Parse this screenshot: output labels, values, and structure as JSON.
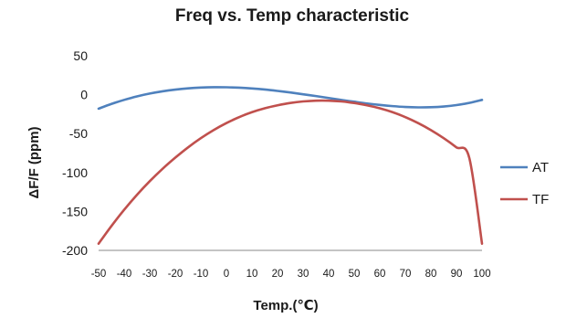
{
  "chart_data": {
    "type": "line",
    "title": "Freq vs. Temp characteristic",
    "xlabel": "Temp.(℃)",
    "ylabel": "ΔF/F (ppm)",
    "x": [
      -50,
      -45,
      -40,
      -35,
      -30,
      -25,
      -20,
      -15,
      -10,
      -5,
      0,
      5,
      10,
      15,
      20,
      25,
      30,
      35,
      40,
      45,
      50,
      55,
      60,
      65,
      70,
      75,
      80,
      85,
      90,
      95,
      100
    ],
    "series": [
      {
        "name": "AT",
        "color": "#4f81bd",
        "values": [
          -18,
          -11.9,
          -6.7,
          -2.2,
          1.4,
          4.3,
          6.5,
          8.1,
          9.1,
          9.6,
          9.5,
          9,
          8,
          6.6,
          4.8,
          2.8,
          0.5,
          -1.8,
          -4.3,
          -6.8,
          -9.1,
          -11.3,
          -13.2,
          -14.7,
          -15.8,
          -16.3,
          -16.1,
          -15.2,
          -13.4,
          -10.6,
          -6.7
        ]
      },
      {
        "name": "TF",
        "color": "#c0504d",
        "values": [
          -191.4,
          -168.8,
          -147.9,
          -128.7,
          -111.2,
          -95.3,
          -80.9,
          -67.7,
          -55.9,
          -45.5,
          -36.5,
          -28.8,
          -22.5,
          -17.5,
          -13.7,
          -10.7,
          -8.7,
          -7.7,
          -7.7,
          -8.7,
          -10.7,
          -13.7,
          -17.5,
          -22.5,
          -28.8,
          -36.5,
          -45.5,
          -55.9,
          -67.7,
          -80.9,
          -191.4
        ]
      }
    ],
    "xlim": [
      -50,
      100
    ],
    "ylim": [
      -200,
      50
    ],
    "xticks": [
      "-50",
      "-40",
      "-30",
      "-20",
      "-10",
      "0",
      "10",
      "20",
      "30",
      "40",
      "50",
      "60",
      "70",
      "80",
      "90",
      "100"
    ],
    "yticks": [
      "50",
      "0",
      "-50",
      "-100",
      "-150",
      "-200"
    ],
    "grid": false,
    "legend": "right"
  }
}
